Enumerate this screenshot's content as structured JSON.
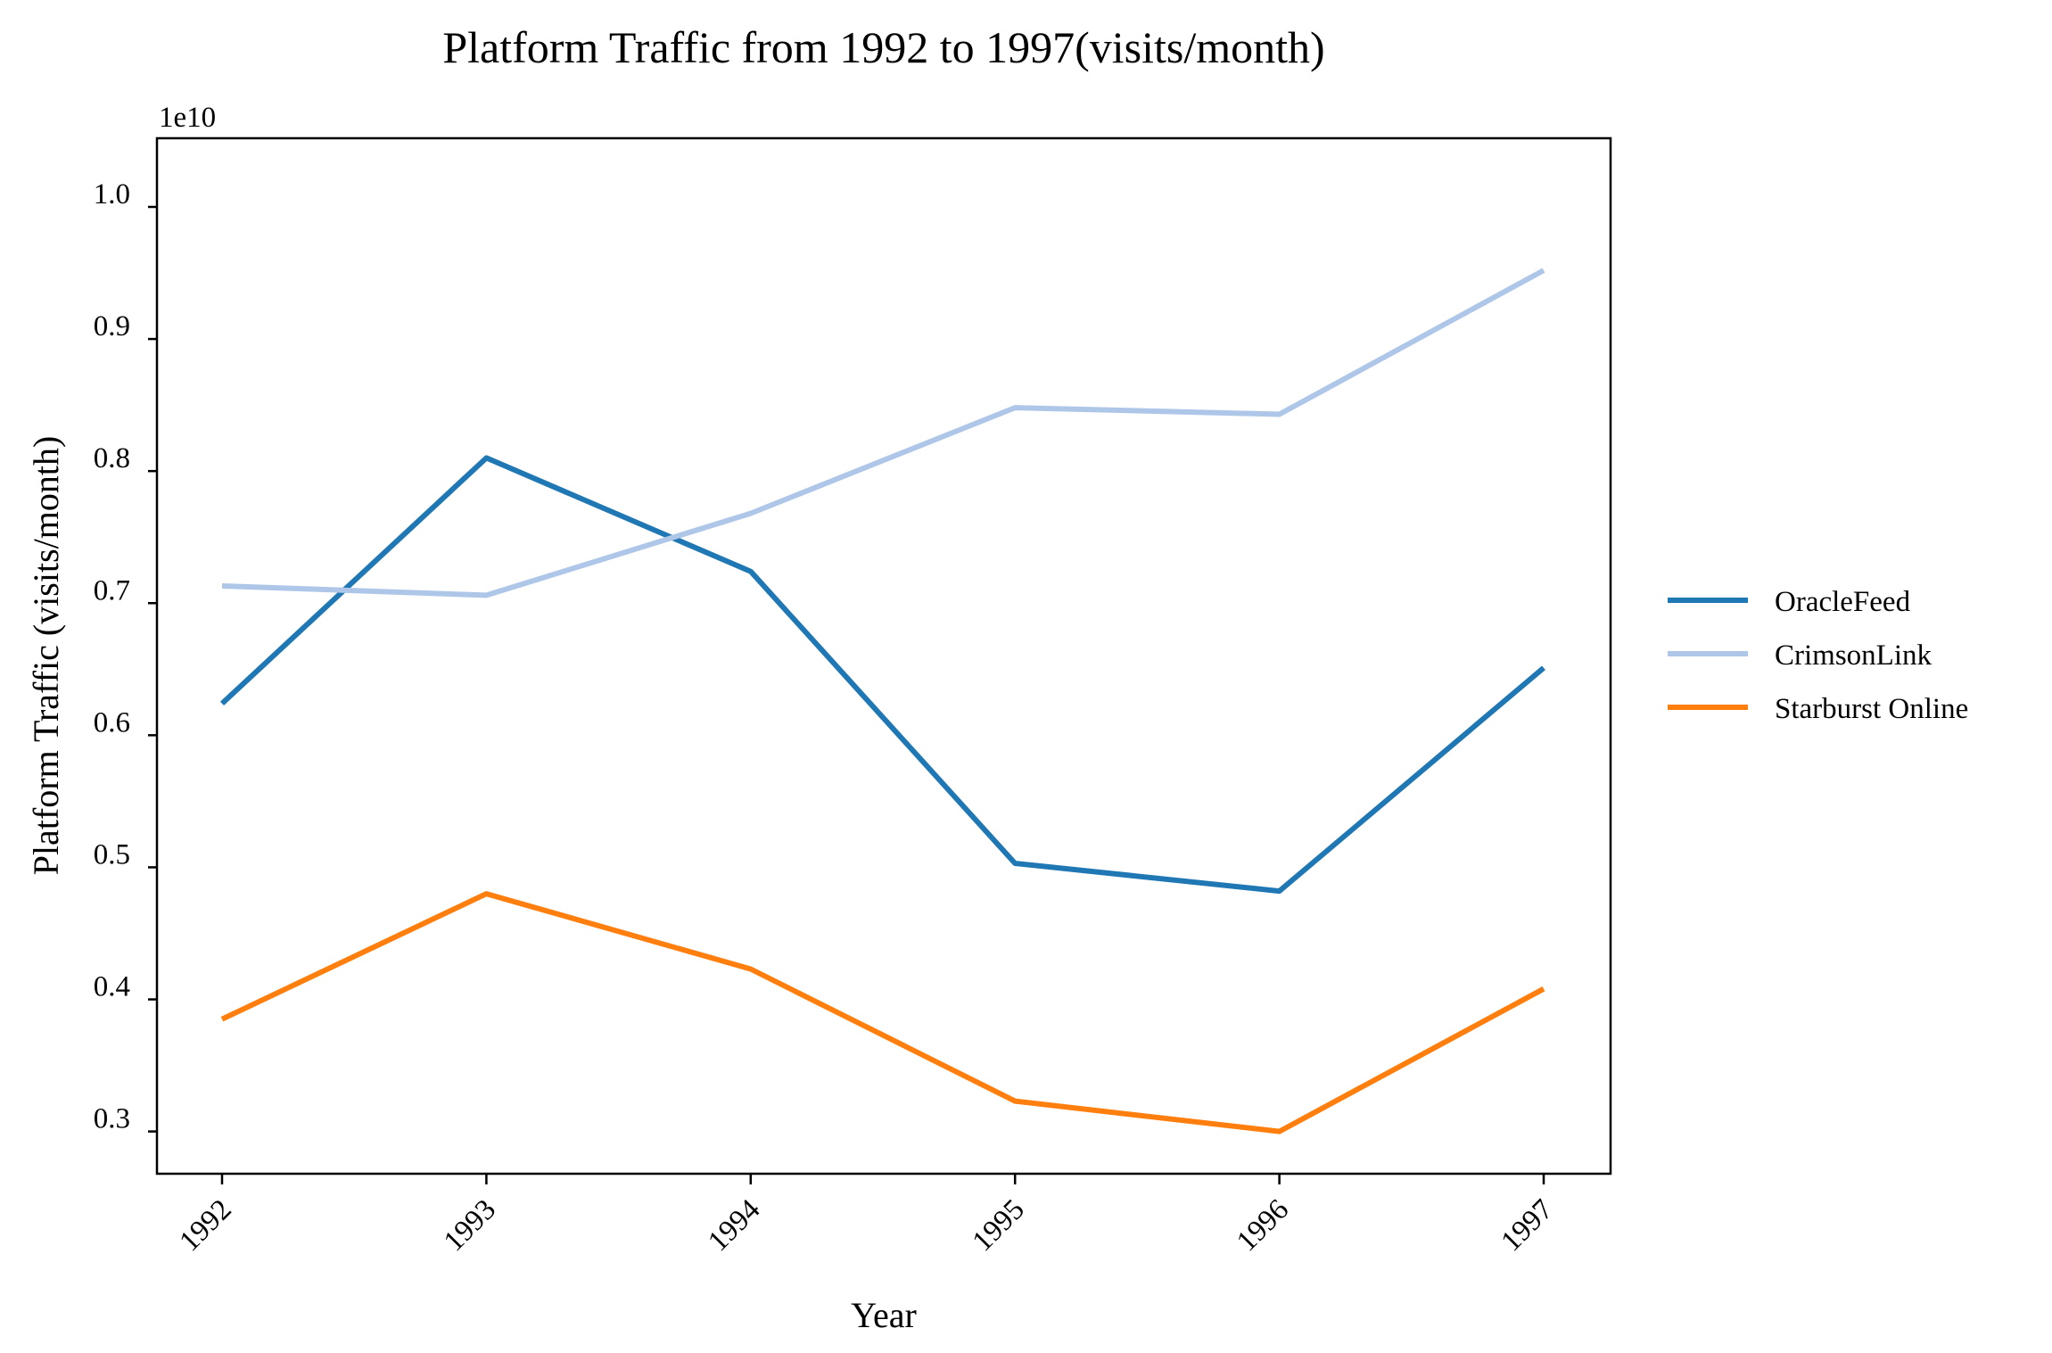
{
  "chart_data": {
    "type": "line",
    "title": "Platform Traffic from 1992 to 1997(visits/month)",
    "xlabel": "Year",
    "ylabel": "Platform Traffic (visits/month)",
    "y_offset_label": "1e10",
    "x": [
      "1992",
      "1993",
      "1994",
      "1995",
      "1996",
      "1997"
    ],
    "yticks": [
      0.3,
      0.4,
      0.5,
      0.6,
      0.7,
      0.8,
      0.9,
      1.0
    ],
    "ytick_labels": [
      "0.3",
      "0.4",
      "0.5",
      "0.6",
      "0.7",
      "0.8",
      "0.9",
      "1.0"
    ],
    "ylim": [
      0.268,
      1.052
    ],
    "y_scale_factor": 10000000000.0,
    "grid": false,
    "legend_position": "right, outside plot",
    "series": [
      {
        "name": "OracleFeed",
        "color": "#1f77b4",
        "values": [
          0.624,
          0.81,
          0.724,
          0.503,
          0.482,
          0.651
        ]
      },
      {
        "name": "CrimsonLink",
        "color": "#aec7e8",
        "values": [
          0.713,
          0.706,
          0.768,
          0.848,
          0.843,
          0.952
        ]
      },
      {
        "name": "Starburst Online",
        "color": "#ff7f0e",
        "values": [
          0.385,
          0.48,
          0.423,
          0.323,
          0.3,
          0.408
        ]
      }
    ]
  }
}
